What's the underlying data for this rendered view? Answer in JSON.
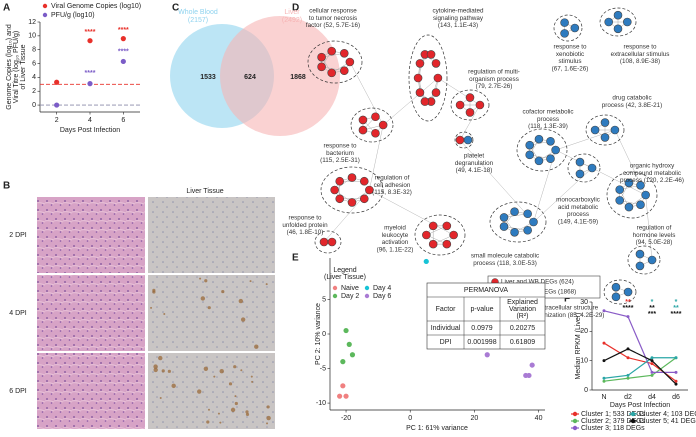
{
  "panel_labels": [
    "A",
    "B",
    "C",
    "D",
    "E",
    "F"
  ],
  "chart_data": [
    {
      "type": "scatter",
      "ylabel": [
        "Genome Copies (log₁₀) and",
        "Viral Titre (log₁₀ PFU/g)",
        "of Liver Tissue"
      ],
      "xlabel": "Days Post Infection",
      "x": [
        2,
        4,
        6
      ],
      "xlim": [
        1,
        7
      ],
      "xticks": [
        2,
        4,
        6
      ],
      "ylim": [
        -1,
        12
      ],
      "yticks": [
        0,
        2,
        4,
        6,
        8,
        10,
        12
      ],
      "series": [
        {
          "name": "Viral Genome Copies (log10)",
          "color": "#e8302a",
          "values": [
            3.3,
            9.3,
            9.6
          ]
        },
        {
          "name": "PFU/g (log10)",
          "color": "#7b5cc7",
          "values": [
            0,
            3.1,
            6.3
          ]
        }
      ],
      "hlines": [
        {
          "value": 3,
          "color": "#e8302a"
        },
        {
          "value": 0,
          "color": "#8a8aa8"
        }
      ],
      "annotations": [
        {
          "text": "****",
          "x": 4,
          "y": 10.5,
          "color": "#e8302a"
        },
        {
          "text": "****",
          "x": 6,
          "y": 10.8,
          "color": "#e8302a"
        },
        {
          "text": "****",
          "x": 4,
          "y": 4.6,
          "color": "#7b5cc7"
        },
        {
          "text": "****",
          "x": 6,
          "y": 7.7,
          "color": "#7b5cc7"
        }
      ]
    },
    {
      "type": "scatter",
      "xlabel": "PC 1: 61% variance",
      "ylabel": [
        "PC 2: 10% variance"
      ],
      "legend_title": [
        "Legend",
        "(Liver Tissue)"
      ],
      "xlim": [
        -25,
        42
      ],
      "xticks": [
        -20,
        0,
        20,
        40
      ],
      "ylim": [
        -11,
        11
      ],
      "yticks": [
        -10,
        -5,
        0,
        5
      ],
      "series": [
        {
          "name": "Naive",
          "color": "#f08080",
          "x": [
            -22,
            -20,
            -21
          ],
          "values": [
            -9,
            -9,
            -7.5
          ]
        },
        {
          "name": "Day 2",
          "color": "#5cb85c",
          "x": [
            -20,
            -19,
            -18,
            -21
          ],
          "values": [
            0.5,
            -1.5,
            -3,
            -4
          ]
        },
        {
          "name": "Day 4",
          "color": "#17c3d6",
          "x": [
            5,
            7
          ],
          "values": [
            10.5,
            2.5
          ]
        },
        {
          "name": "Day 6",
          "color": "#a97bd4",
          "x": [
            24,
            36,
            37,
            38
          ],
          "values": [
            -3,
            -6,
            -6,
            -4.5
          ]
        }
      ]
    },
    {
      "type": "line",
      "xlabel": "Days Post Infection",
      "ylabel": [
        "Median RPKM (Liver)"
      ],
      "categories": [
        "N",
        "d2",
        "d4",
        "d6"
      ],
      "ylim": [
        0,
        30
      ],
      "yticks": [
        0,
        10,
        20,
        30
      ],
      "series": [
        {
          "name": "Cluster 1; 533 DEGs",
          "color": "#e8302a",
          "values": [
            16,
            11,
            9,
            3
          ]
        },
        {
          "name": "Cluster 2; 379 DEGs",
          "color": "#5cb85c",
          "values": [
            3,
            4,
            5,
            11
          ]
        },
        {
          "name": "Cluster 3; 118 DEGs",
          "color": "#8a5cc7",
          "values": [
            27,
            25,
            6,
            6
          ]
        },
        {
          "name": "Cluster 4; 103 DEGs",
          "color": "#2aa6a6",
          "values": [
            4,
            5,
            11,
            11
          ]
        },
        {
          "name": "Cluster 5; 41 DEGs",
          "color": "#111111",
          "values": [
            10,
            14,
            10,
            2
          ]
        }
      ],
      "annotations": [
        {
          "text": "**",
          "x": "d2",
          "color": "#e8302a"
        },
        {
          "text": "****",
          "x": "d2",
          "color": "#111111"
        },
        {
          "text": "*",
          "x": "d4",
          "color": "#2aa6a6"
        },
        {
          "text": "**",
          "x": "d4",
          "color": "#111111"
        },
        {
          "text": "***",
          "x": "d4",
          "color": "#111111"
        },
        {
          "text": "*",
          "x": "d6",
          "color": "#2aa6a6"
        },
        {
          "text": "**",
          "x": "d6",
          "color": "#2aa6a6"
        },
        {
          "text": "****",
          "x": "d6",
          "color": "#111111"
        }
      ]
    }
  ],
  "microscopy": {
    "title": "Liver Tissue",
    "rows": [
      "2 DPI",
      "4 DPI",
      "6 DPI"
    ]
  },
  "venn": {
    "sets": [
      {
        "name": "Whole Blood",
        "count": "(2157)",
        "color": "#8fd3ef"
      },
      {
        "name": "Liver",
        "count": "(2492)",
        "color": "#f6b4b4"
      }
    ],
    "regions": [
      1533,
      624,
      1868
    ]
  },
  "network": {
    "legend": [
      {
        "label": "Liver and WB DEGs (624)",
        "color": "#e2262b"
      },
      {
        "label": "Liver-specific DEGs (1868)",
        "color": "#2e7bbf"
      }
    ],
    "clusters": [
      [
        "cellular response",
        "to tumor necrosis",
        "factor (52, 5.7E-16)"
      ],
      [
        "cytokine-mediated",
        "signaling pathway",
        "(143, 1.1E-43)"
      ],
      [
        "regulation of multi-",
        "organism process",
        "(79, 2.7E-26)"
      ],
      [
        "response to",
        "bacterium",
        "(115, 2.5E-31)"
      ],
      [
        "regulation of",
        "cell adhesion",
        "(115, 8.3E-32)"
      ],
      [
        "platelet",
        "degranulation",
        "(49, 4.1E-18)"
      ],
      [
        "response to",
        "unfolded protein",
        "(46, 1.8E-10)"
      ],
      [
        "myeloid",
        "leukocyte",
        "activation",
        "(96, 1.1E-22)"
      ],
      [
        "response to",
        "xenobiotic",
        "stimulus",
        "(67, 1.6E-26)"
      ],
      [
        "response to",
        "extracellular stimulus",
        "(108, 8.9E-38)"
      ],
      [
        "cofactor metabolic",
        "process",
        "(118, 1.3E-39)"
      ],
      [
        "drug catabolic",
        "process (42, 3.8E-21)"
      ],
      [
        "organic hydroxy",
        "compound metabolic",
        "process (120, 2.2E-46)"
      ],
      [
        "monocarboxylic",
        "acid metabolic",
        "process",
        "(149, 4.1E-59)"
      ],
      [
        "regulation of",
        "hormone levels",
        "(94, 5.0E-28)"
      ],
      [
        "small molecule catabolic",
        "process (118, 3.0E-53)"
      ],
      [
        "extracellular structure",
        "organization (85, 4.2E-29)"
      ]
    ]
  },
  "permanova": {
    "title": "PERMANOVA",
    "header": [
      [
        "Factor"
      ],
      [
        "p-value"
      ],
      [
        "Explained",
        "Variation",
        "(R²)"
      ]
    ],
    "rows": [
      [
        "Individual",
        "0.0979",
        "0.20275"
      ],
      [
        "DPI",
        "0.001998",
        "0.61809"
      ]
    ]
  }
}
